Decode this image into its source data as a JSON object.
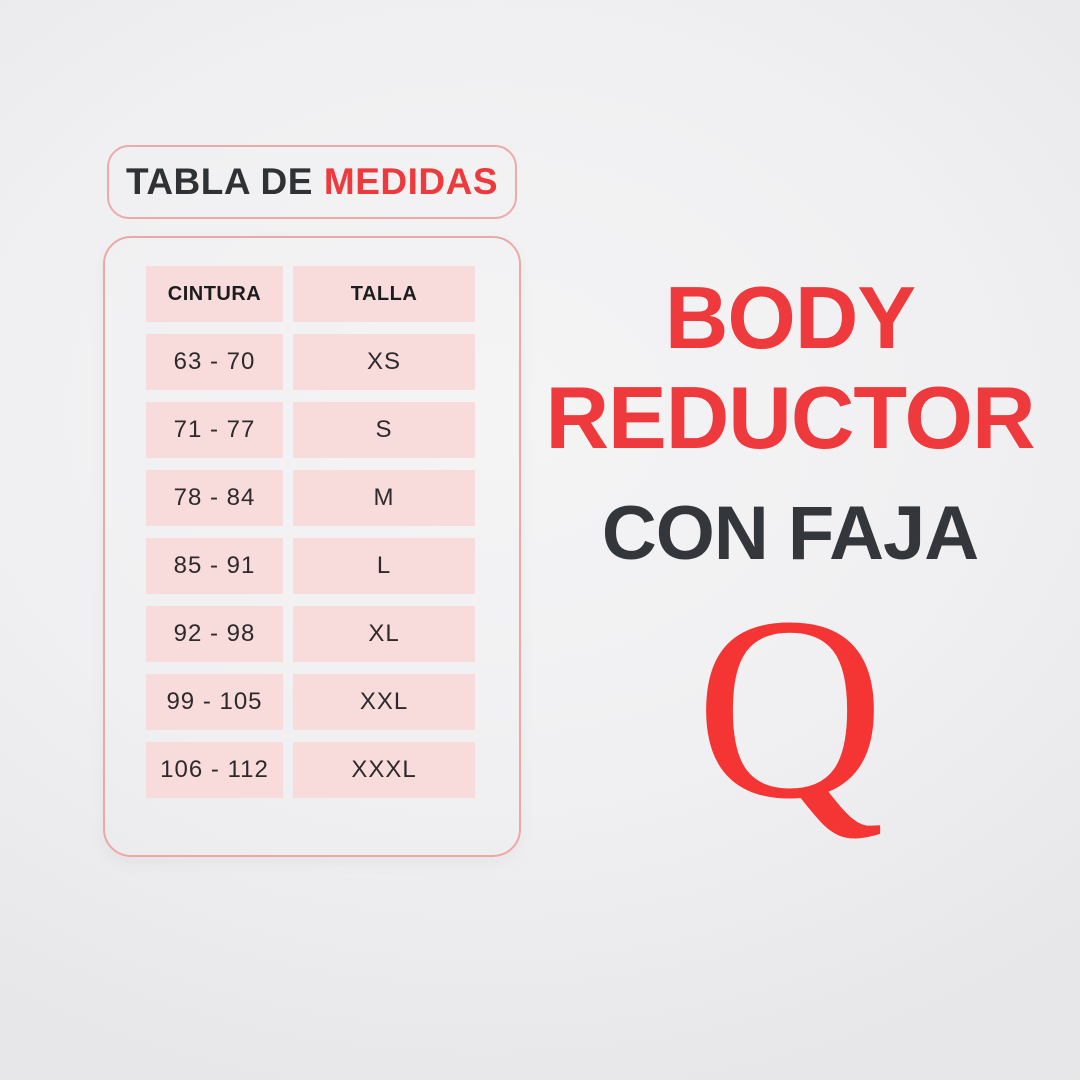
{
  "title_box": {
    "text_dark": "TABLA DE",
    "text_red": "MEDIDAS"
  },
  "size_table": {
    "headers": [
      "CINTURA",
      "TALLA"
    ],
    "rows": [
      {
        "cintura": "63 - 70",
        "talla": "XS"
      },
      {
        "cintura": "71 - 77",
        "talla": "S"
      },
      {
        "cintura": "78 - 84",
        "talla": "M"
      },
      {
        "cintura": "85 - 91",
        "talla": "L"
      },
      {
        "cintura": "92 - 98",
        "talla": "XL"
      },
      {
        "cintura": "99 - 105",
        "talla": "XXL"
      },
      {
        "cintura": "106 - 112",
        "talla": "XXXL"
      }
    ]
  },
  "right_panel": {
    "heading_line1": "BODY",
    "heading_line2": "REDUCTOR",
    "subheading": "CON FAJA",
    "logo_letter": "Q"
  },
  "colors": {
    "accent_red": "#ee3a3c",
    "logo_red": "#f53434",
    "dark_text": "#2f3235",
    "cell_pink": "#f8dcdc",
    "border_pink": "#eba9a6",
    "background": "#f0f0f2"
  }
}
